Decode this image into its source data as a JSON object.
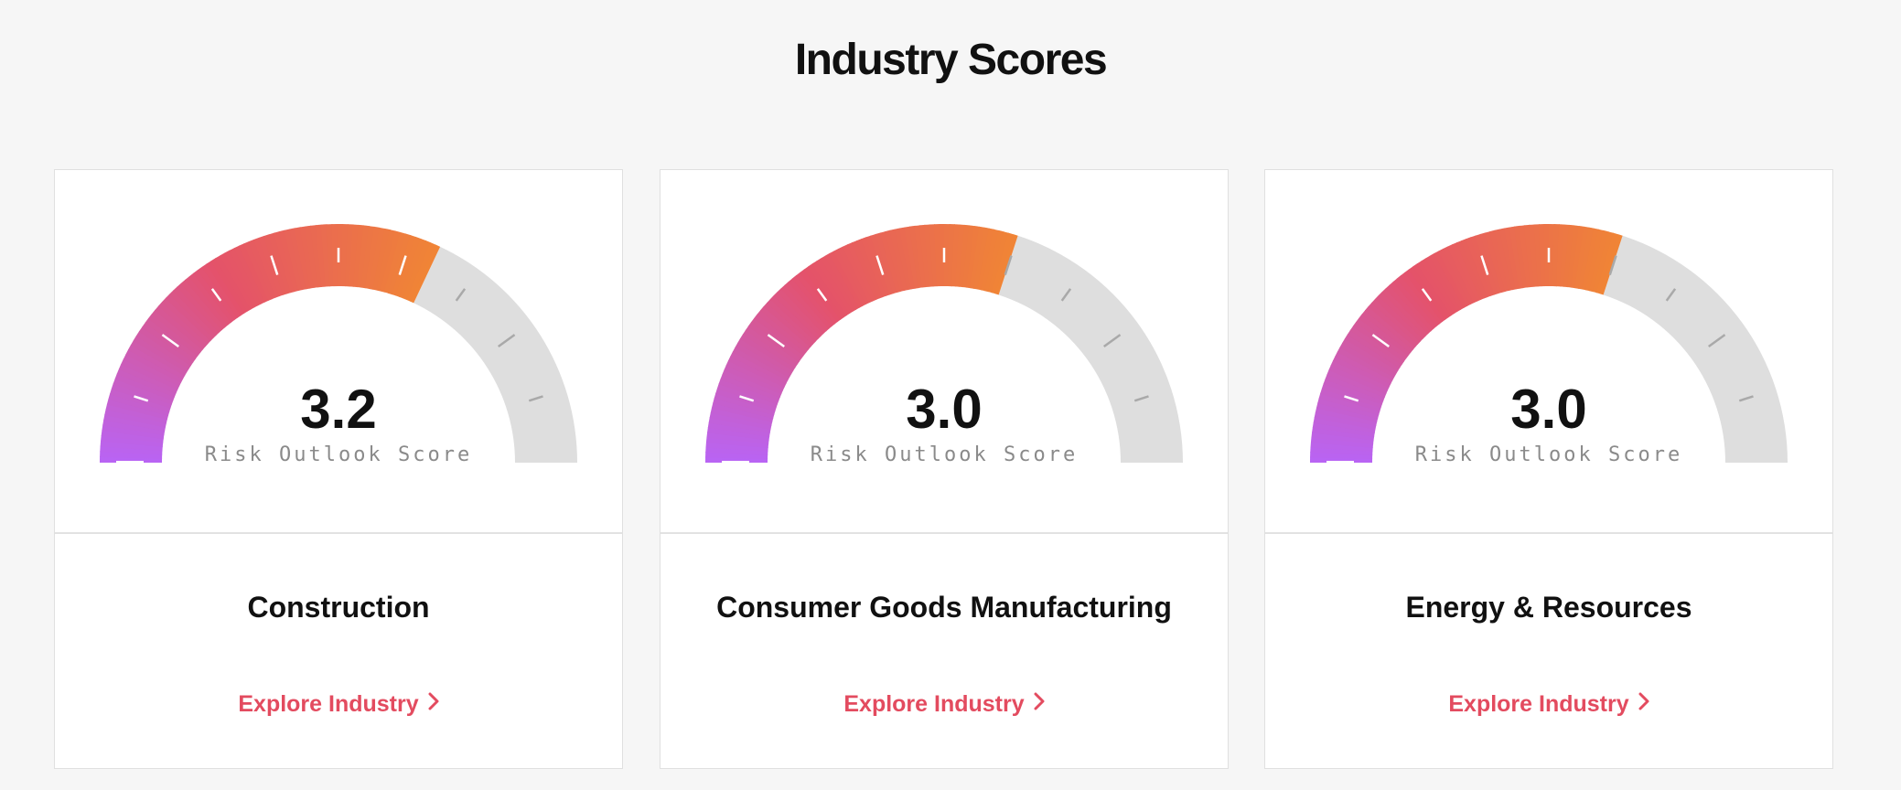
{
  "page": {
    "title": "Industry Scores"
  },
  "colors": {
    "gradient_start": "#b964f5",
    "gradient_mid": "#e4526a",
    "gradient_end": "#f08535",
    "track": "#dedede",
    "link": "#e34b5f"
  },
  "gauge": {
    "min": 0,
    "max": 5
  },
  "cards": [
    {
      "score": "3.2",
      "score_value": 3.2,
      "score_label": "Risk Outlook Score",
      "industry": "Construction",
      "link_label": "Explore Industry",
      "link_icon": "chevron-right-icon"
    },
    {
      "score": "3.0",
      "score_value": 3.0,
      "score_label": "Risk Outlook Score",
      "industry": "Consumer Goods Manufacturing",
      "link_label": "Explore Industry",
      "link_icon": "chevron-right-icon"
    },
    {
      "score": "3.0",
      "score_value": 3.0,
      "score_label": "Risk Outlook Score",
      "industry": "Energy & Resources",
      "link_label": "Explore Industry",
      "link_icon": "chevron-right-icon"
    }
  ]
}
